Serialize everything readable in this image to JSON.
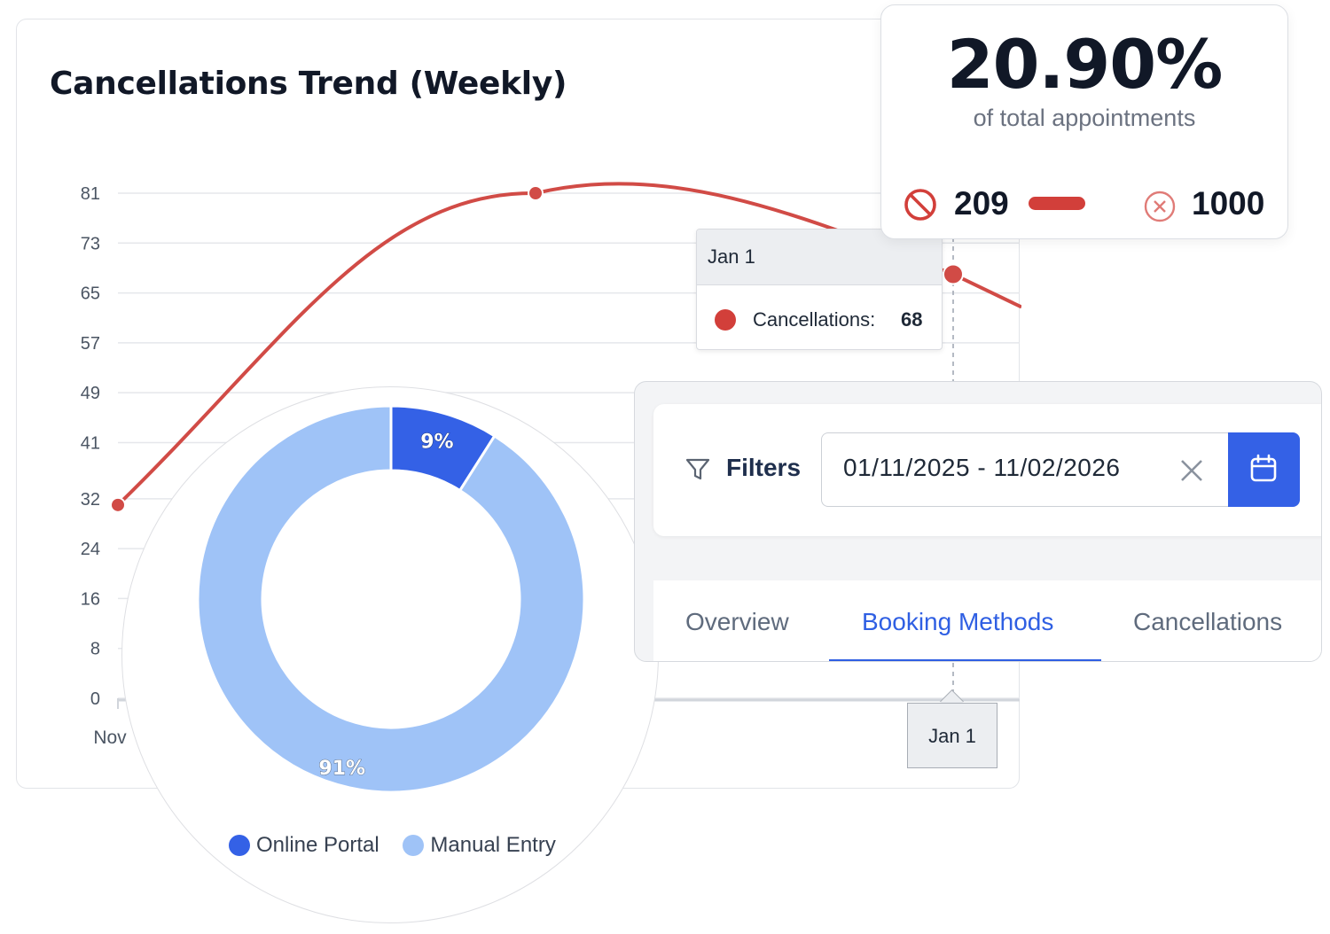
{
  "chart_title": "Cancellations Trend (Weekly)",
  "chart_data": {
    "type": "line",
    "title": "Cancellations Trend (Weekly)",
    "series": [
      {
        "name": "Cancellations",
        "color": "#d14b46",
        "points": [
          {
            "x": "Nov",
            "y": 31
          },
          {
            "x": "",
            "y": 81
          },
          {
            "x": "Jan 1",
            "y": 68
          }
        ]
      }
    ],
    "y_ticks": [
      0,
      8,
      16,
      24,
      32,
      41,
      49,
      57,
      65,
      73,
      81
    ],
    "x_labels": [
      "Nov",
      "Jan 1"
    ],
    "ylim": [
      0,
      81
    ],
    "grid": true
  },
  "tooltip": {
    "date": "Jan 1",
    "series_label": "Cancellations:",
    "value": "68",
    "color": "#d23f3a"
  },
  "x_axis_tooltip": "Jan 1",
  "stats": {
    "percentage": "20.90%",
    "subtitle": "of total appointments",
    "cancelled_count": "209",
    "total_count": "1000",
    "cancelled_icon": "ban-icon",
    "total_icon": "x-circle-icon",
    "accent_color": "#d23f3a"
  },
  "donut": {
    "segments": [
      {
        "name": "Online Portal",
        "percent": 9,
        "label": "9%",
        "color": "#3461e6"
      },
      {
        "name": "Manual Entry",
        "percent": 91,
        "label": "91%",
        "color": "#9fc3f7"
      }
    ]
  },
  "filters": {
    "label": "Filters",
    "date_range": "01/11/2025 - 11/02/2026",
    "filter_icon": "funnel-icon",
    "clear_icon": "close-icon",
    "calendar_icon": "calendar-icon"
  },
  "tabs": [
    {
      "label": "Overview",
      "active": false
    },
    {
      "label": "Booking Methods",
      "active": true
    },
    {
      "label": "Cancellations",
      "active": false
    }
  ]
}
